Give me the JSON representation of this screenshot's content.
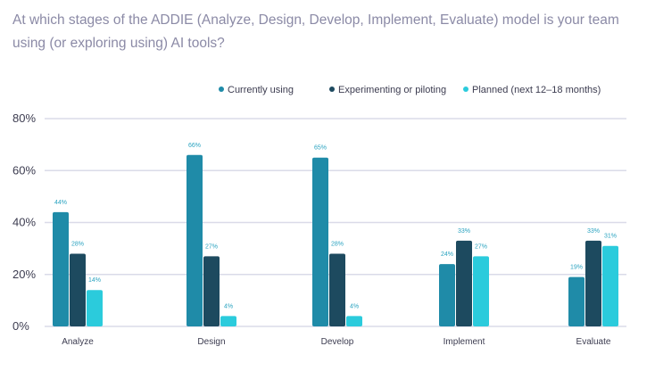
{
  "chart_data": {
    "type": "bar",
    "title": "At which stages of the ADDIE (Analyze, Design, Develop, Implement, Evaluate) model is your team using (or exploring using) AI tools?",
    "categories": [
      "Analyze",
      "Design",
      "Develop",
      "Implement",
      "Evaluate"
    ],
    "series": [
      {
        "name": "Currently using",
        "color": "#1f8ba8",
        "values": [
          44,
          66,
          65,
          24,
          19
        ]
      },
      {
        "name": "Experimenting or piloting",
        "color": "#1d4a5f",
        "values": [
          28,
          27,
          28,
          33,
          33
        ]
      },
      {
        "name": "Planned (next 12–18 months)",
        "color": "#2bcbdc",
        "values": [
          14,
          4,
          4,
          27,
          31
        ]
      }
    ],
    "data_label_suffix": "%",
    "yticks": [
      "0%",
      "20%",
      "40%",
      "60%",
      "80%"
    ],
    "ylim": [
      0,
      80
    ],
    "grid": true,
    "legend_position": "top-right",
    "xlabel": "",
    "ylabel": ""
  }
}
